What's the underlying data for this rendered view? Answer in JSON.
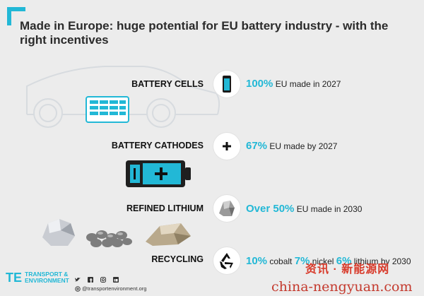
{
  "title": "Made in Europe: huge potential for EU battery industry - with the right incentives",
  "rows": [
    {
      "label": "BATTERY CELLS",
      "big": "100%",
      "text": " EU made in 2027",
      "icon": "battery-phone-icon"
    },
    {
      "label": "BATTERY CATHODES",
      "big": "67%",
      "text": " EU made by 2027",
      "icon": "plus-icon"
    },
    {
      "label": "REFINED LITHIUM",
      "big": "Over 50%",
      "text": " EU made in 2030",
      "icon": "lithium-ore-icon"
    },
    {
      "label": "RECYCLING",
      "recycling": [
        {
          "big": "10%",
          "text": " cobalt "
        },
        {
          "big": "7%",
          "text": " nickel "
        },
        {
          "big": "6%",
          "text": " lithium by 2030"
        }
      ],
      "icon": "recycle-icon"
    }
  ],
  "footer": {
    "org_mark": "TE",
    "org_line1": "TRANSPORT &",
    "org_line2": "ENVIRONMENT",
    "handle": "@transportenvironment.org"
  },
  "watermark": {
    "line1": "资讯 · 新能源网",
    "line2": "china-nengyuan.com"
  },
  "colors": {
    "accent": "#22b8d6",
    "background": "#ececec"
  }
}
